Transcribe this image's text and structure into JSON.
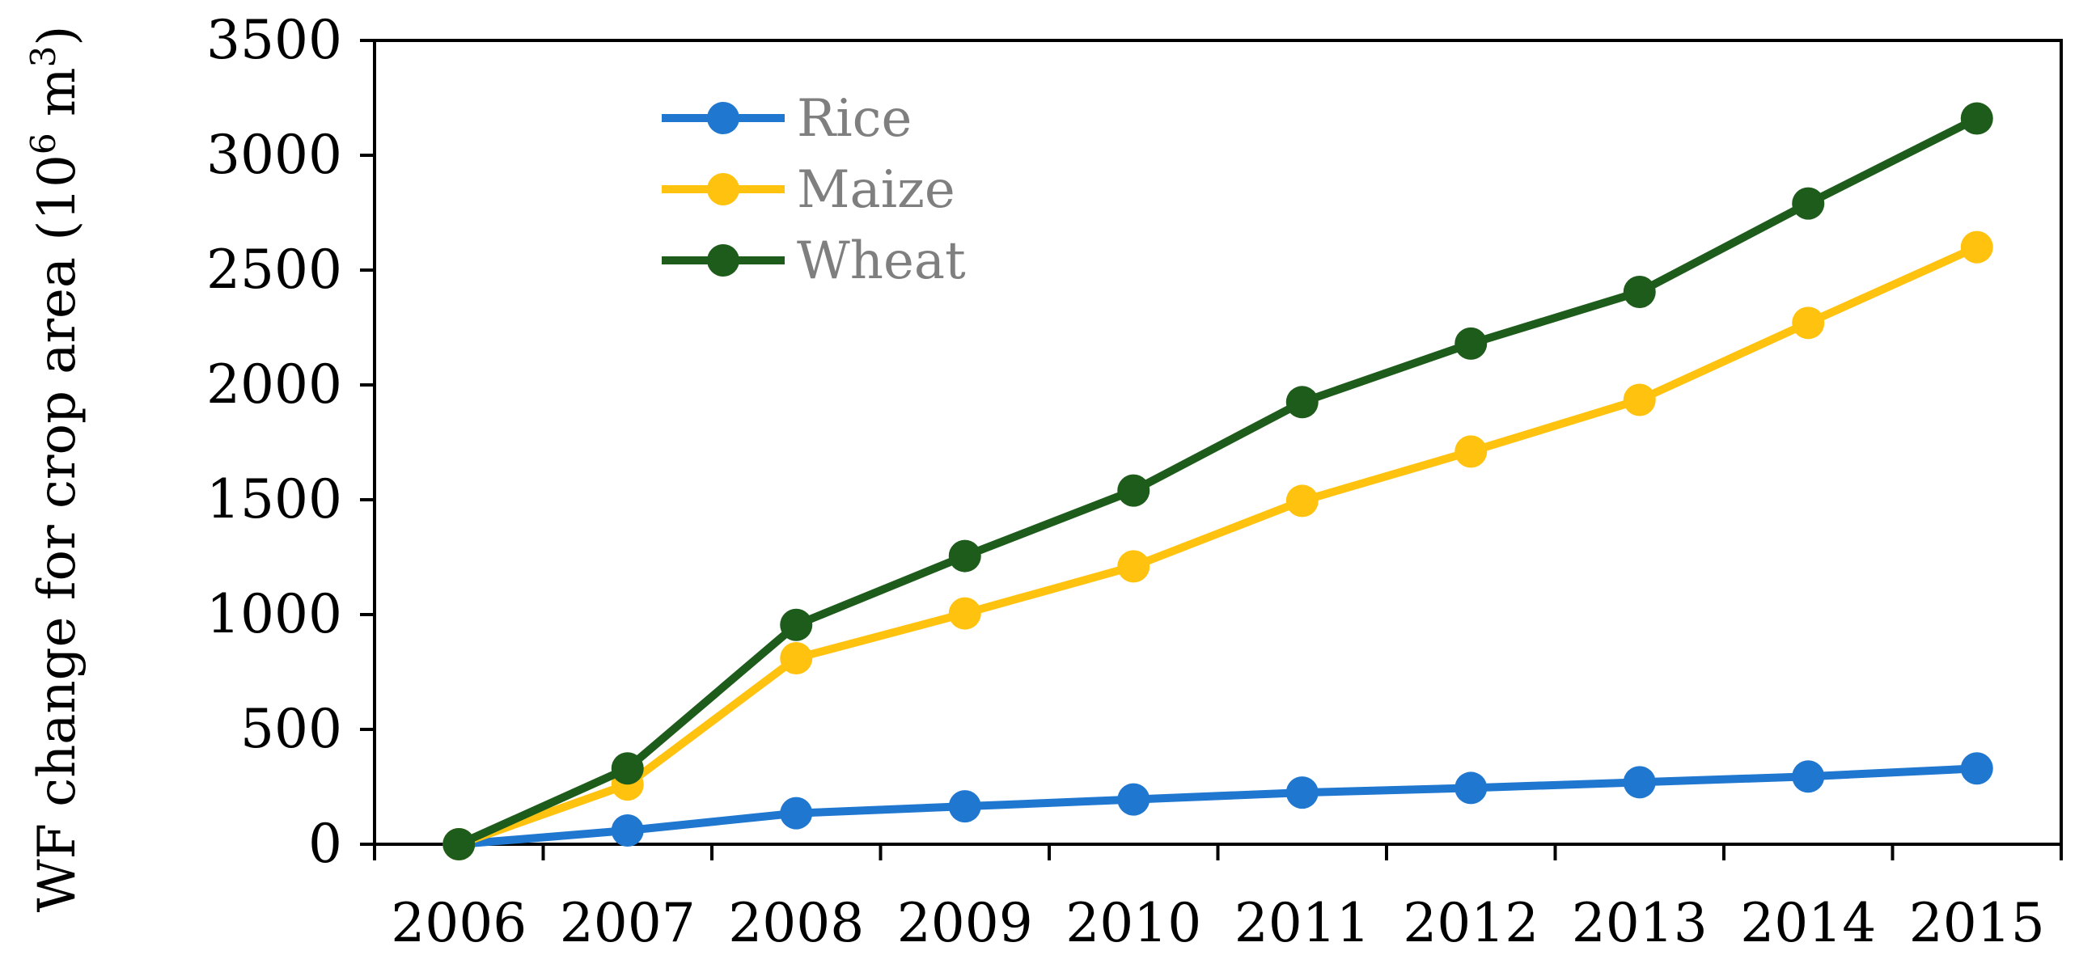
{
  "chart_data": {
    "type": "line",
    "title": "",
    "xlabel": "",
    "ylabel": {
      "prefix": "WF change for crop area (10",
      "sup1": "6",
      "mid": " m",
      "sup2": "3",
      "suffix": ")"
    },
    "categories": [
      "2006",
      "2007",
      "2008",
      "2009",
      "2010",
      "2011",
      "2012",
      "2013",
      "2014",
      "2015"
    ],
    "ylim": [
      0,
      3500
    ],
    "yticks": [
      "0",
      "500",
      "1000",
      "1500",
      "2000",
      "2500",
      "3000",
      "3500"
    ],
    "grid": false,
    "legend_position": "top-left",
    "series": [
      {
        "name": "Rice",
        "color": "#1f77d0",
        "values": [
          0,
          60,
          135,
          165,
          195,
          225,
          245,
          270,
          295,
          330
        ]
      },
      {
        "name": "Maize",
        "color": "#ffc20e",
        "values": [
          0,
          260,
          810,
          1005,
          1210,
          1495,
          1710,
          1935,
          2270,
          2600
        ]
      },
      {
        "name": "Wheat",
        "color": "#1e5c1c",
        "values": [
          0,
          330,
          955,
          1255,
          1540,
          1925,
          2180,
          2405,
          2790,
          3160
        ]
      }
    ]
  }
}
